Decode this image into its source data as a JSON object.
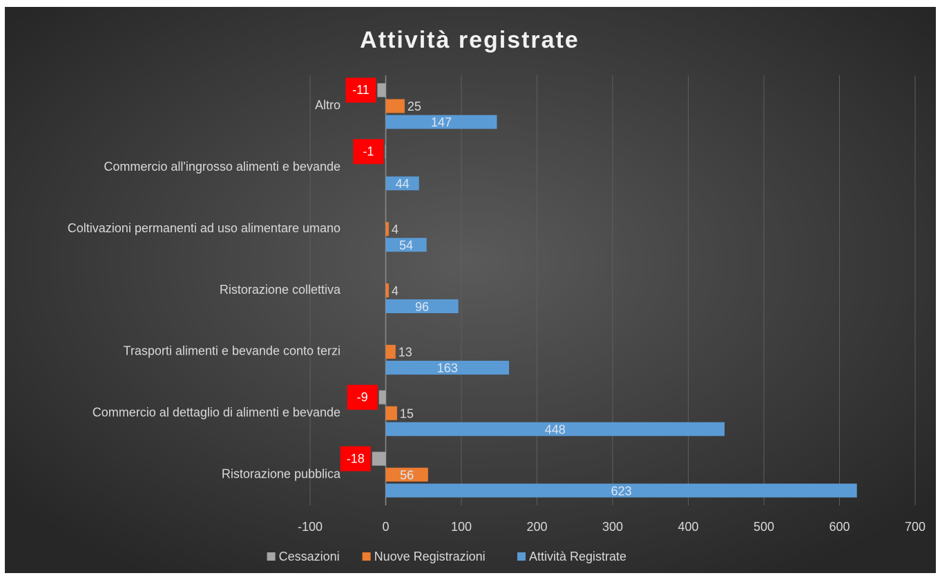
{
  "chart_data": {
    "type": "barh",
    "title": "Attività registrate",
    "categories": [
      "Ristorazione pubblica",
      "Commercio al dettaglio di alimenti e bevande",
      "Trasporti alimenti e bevande conto terzi",
      "Ristorazione collettiva",
      "Coltivazioni permanenti ad uso alimentare umano",
      "Commercio all'ingrosso alimenti e bevande",
      "Altro"
    ],
    "series": [
      {
        "name": "Cessazioni",
        "color": "#a6a6a6",
        "values": [
          -18,
          -9,
          null,
          null,
          null,
          -1,
          -11
        ]
      },
      {
        "name": "Nuove Registrazioni",
        "color": "#ed7d31",
        "values": [
          56,
          15,
          13,
          4,
          4,
          null,
          25
        ]
      },
      {
        "name": "Attività Registrate",
        "color": "#5b9bd5",
        "values": [
          623,
          448,
          163,
          96,
          54,
          44,
          147
        ]
      }
    ],
    "xlim": [
      -100,
      700
    ],
    "xticks": [
      -100,
      0,
      100,
      200,
      300,
      400,
      500,
      600,
      700
    ],
    "grid": true,
    "legend": "bottom"
  }
}
